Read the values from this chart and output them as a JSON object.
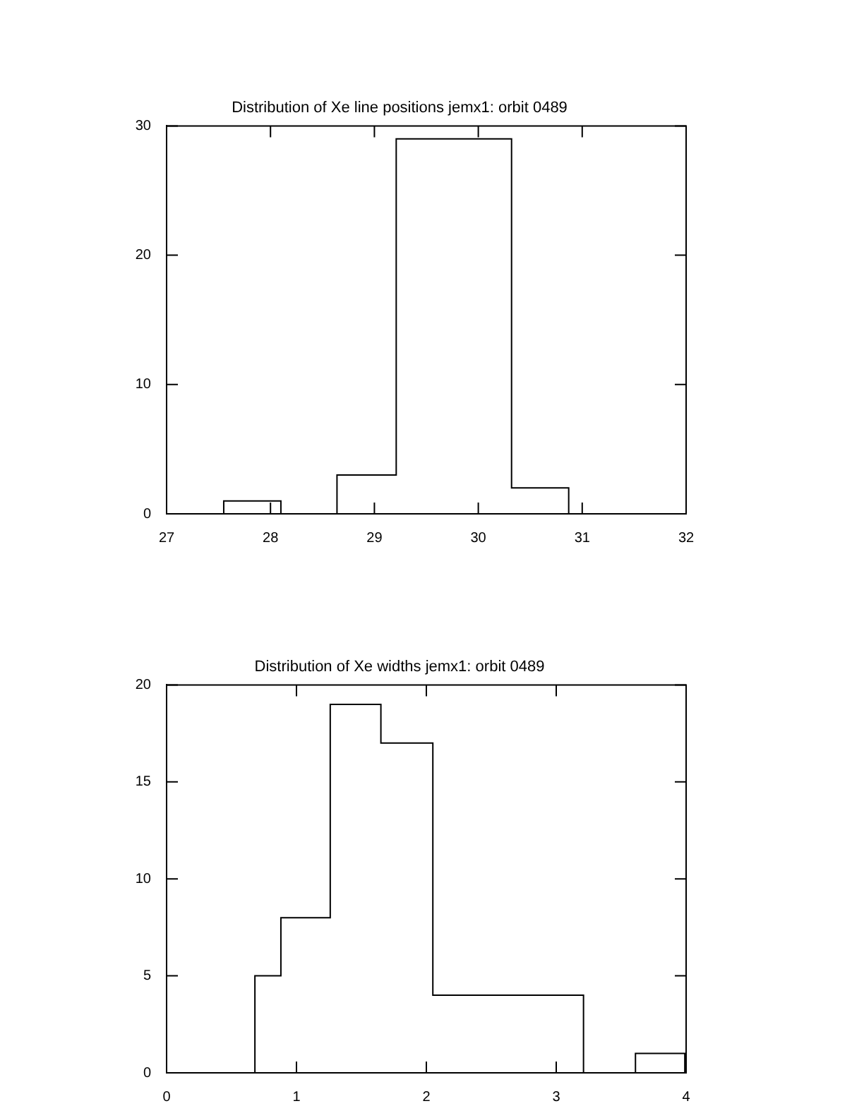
{
  "chart_data": [
    {
      "type": "histogram",
      "title": "Distribution of Xe line positions jemx1: orbit 0489",
      "bins": [
        27.55,
        28.1,
        28.64,
        29.21,
        29.76,
        30.32,
        30.87
      ],
      "series": [
        {
          "color": "#000000",
          "values": [
            1,
            0,
            3,
            29,
            29,
            2
          ]
        }
      ],
      "xlim": [
        27,
        32
      ],
      "xticks": [
        27,
        28,
        29,
        30,
        31,
        32
      ],
      "ylim": [
        0,
        30
      ],
      "yticks": [
        0,
        10,
        20,
        30
      ]
    },
    {
      "type": "histogram",
      "title": "Distribution of Xe widths jemx1: orbit 0489",
      "bins": [
        0.68,
        0.88,
        1.26,
        1.65,
        2.05,
        2.44,
        2.83,
        3.21,
        3.61,
        3.99
      ],
      "series": [
        {
          "color": "#000000",
          "values": [
            5,
            8,
            19,
            17,
            4,
            4,
            4,
            0,
            1
          ]
        }
      ],
      "xlim": [
        0,
        4
      ],
      "xticks": [
        0,
        1,
        2,
        3,
        4
      ],
      "ylim": [
        0,
        20
      ],
      "yticks": [
        0,
        5,
        10,
        15,
        20
      ]
    }
  ]
}
